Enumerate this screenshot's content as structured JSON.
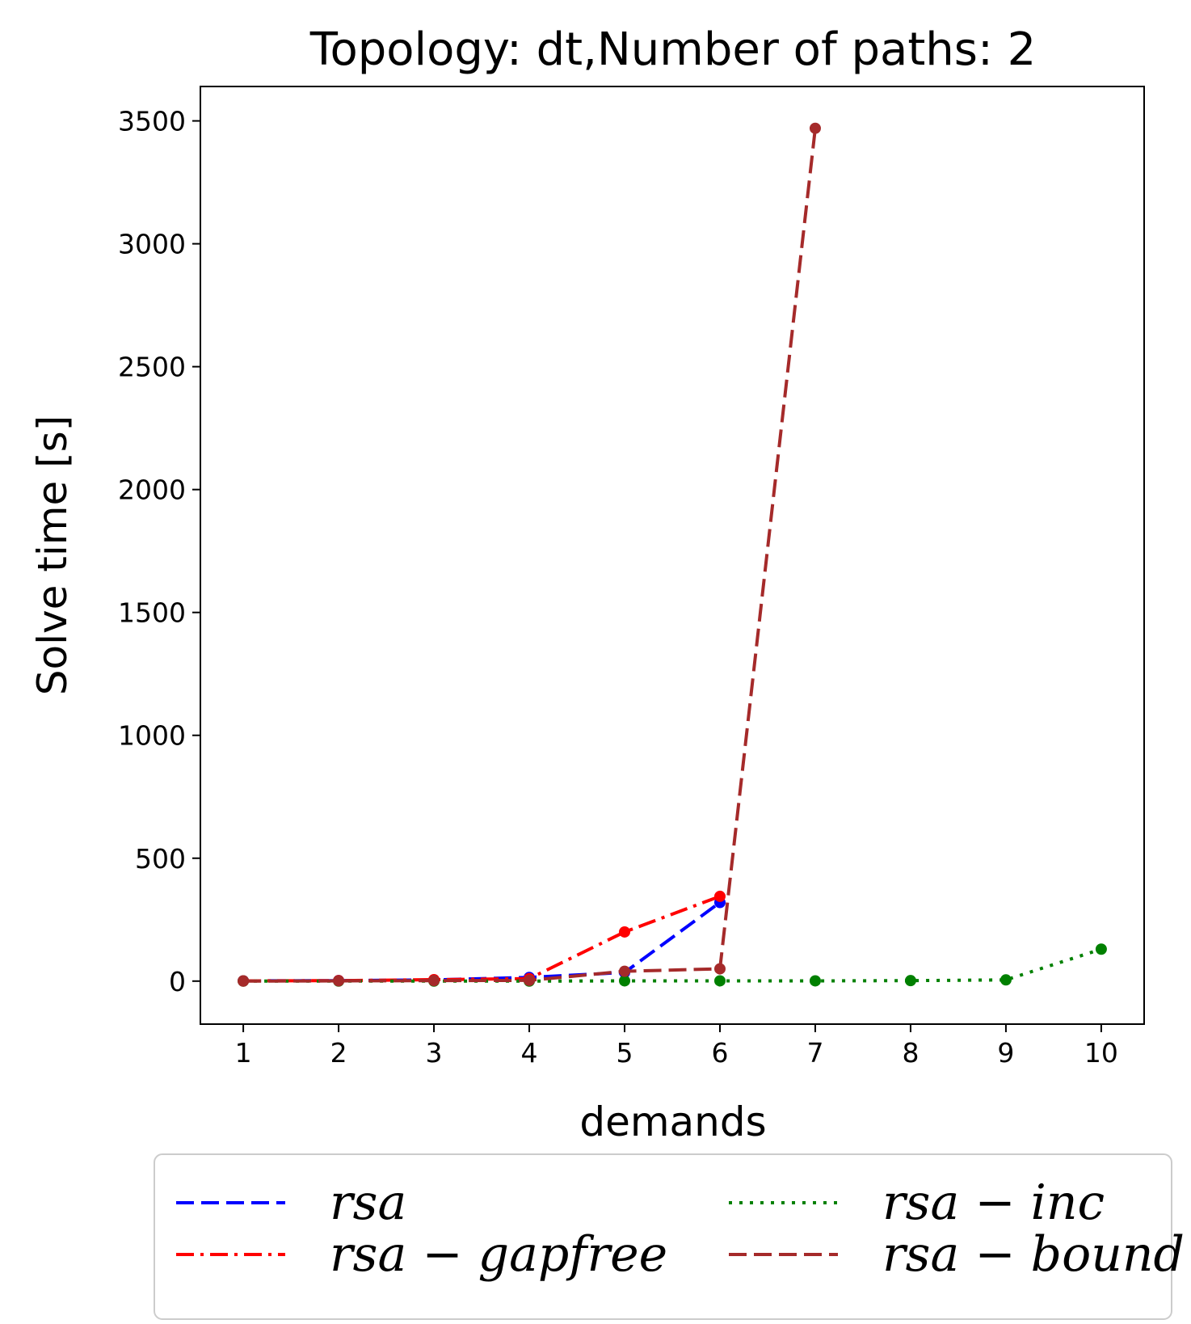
{
  "chart_data": {
    "type": "line",
    "title": "Topology: dt,Number of paths: 2",
    "xlabel": "demands",
    "ylabel": "Solve time [s]",
    "xlim": [
      0.55,
      10.45
    ],
    "ylim": [
      -175,
      3640
    ],
    "x_ticks": [
      1,
      2,
      3,
      4,
      5,
      6,
      7,
      8,
      9,
      10
    ],
    "y_ticks": [
      0,
      500,
      1000,
      1500,
      2000,
      2500,
      3000,
      3500
    ],
    "grid": false,
    "legend_position": "below",
    "series": [
      {
        "name": "rsa",
        "color": "#0000ff",
        "linestyle": "dashed",
        "x": [
          1,
          2,
          3,
          4,
          5,
          6
        ],
        "y": [
          1,
          2,
          5,
          15,
          35,
          320
        ]
      },
      {
        "name": "rsa − gapfree",
        "color": "#ff0000",
        "linestyle": "dashdot",
        "x": [
          1,
          2,
          3,
          4,
          5,
          6
        ],
        "y": [
          1,
          2,
          6,
          10,
          200,
          345
        ]
      },
      {
        "name": "rsa − inc",
        "color": "#008000",
        "linestyle": "dotted",
        "x": [
          1,
          2,
          3,
          4,
          5,
          6,
          7,
          8,
          9,
          10
        ],
        "y": [
          0,
          0,
          0,
          0,
          1,
          1,
          1,
          2,
          5,
          130
        ]
      },
      {
        "name": "rsa − bound",
        "color": "#a52a2a",
        "linestyle": "dashed",
        "x": [
          1,
          2,
          3,
          4,
          5,
          6,
          7
        ],
        "y": [
          0,
          1,
          2,
          3,
          40,
          50,
          3470
        ]
      }
    ]
  }
}
